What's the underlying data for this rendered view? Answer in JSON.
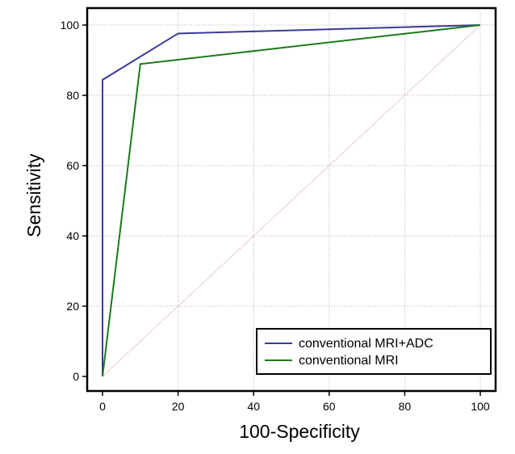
{
  "chart_data": {
    "type": "line",
    "xlabel": "100-Specificity",
    "ylabel": "Sensitivity",
    "xlim": [
      0,
      100
    ],
    "ylim": [
      0,
      100
    ],
    "xticks": [
      "0",
      "20",
      "40",
      "60",
      "80",
      "100"
    ],
    "yticks": [
      "0",
      "20",
      "40",
      "60",
      "80",
      "100"
    ],
    "grid": true,
    "legend_position": "bottom-right",
    "series": [
      {
        "name": "conventional MRI+ADC",
        "color": "#3a3a9a",
        "x": [
          0,
          0,
          20,
          100
        ],
        "y": [
          0,
          84.4,
          97.6,
          100
        ]
      },
      {
        "name": "conventional MRI",
        "color": "#1a7a1a",
        "x": [
          0,
          10,
          100
        ],
        "y": [
          0,
          88.9,
          100
        ]
      }
    ],
    "reference_line": {
      "color": "#d98080",
      "x": [
        0,
        100
      ],
      "y": [
        0,
        100
      ]
    }
  }
}
